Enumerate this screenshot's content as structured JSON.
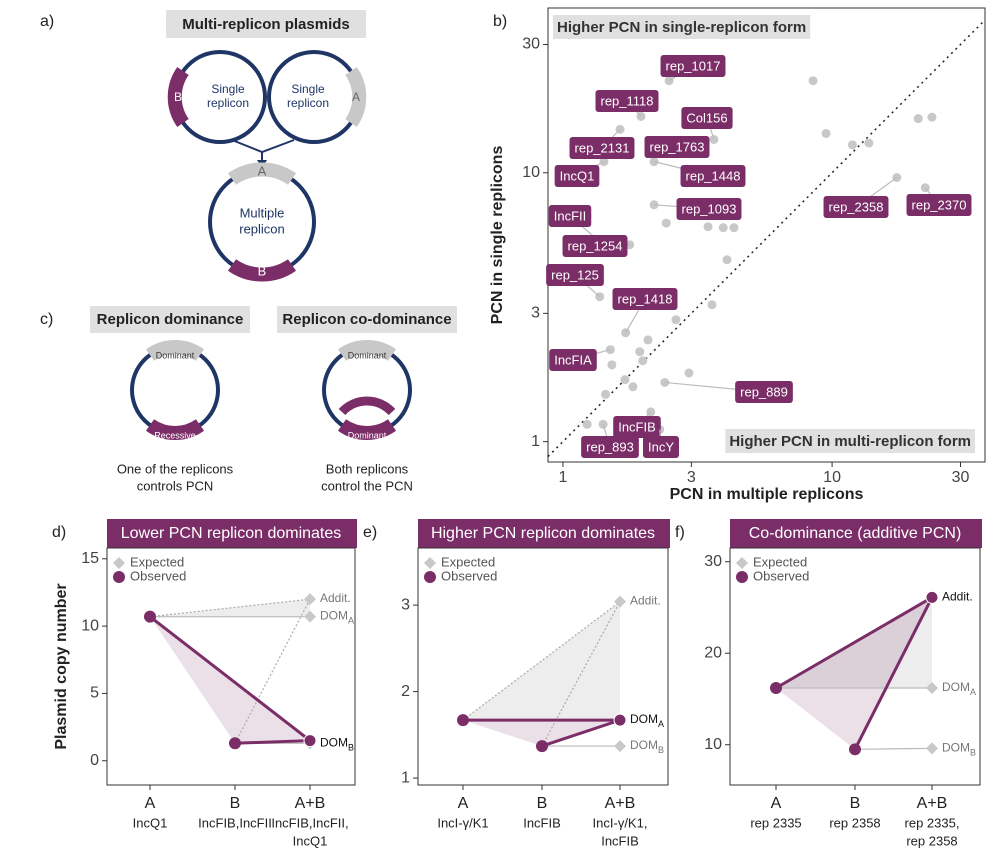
{
  "panel_a": {
    "label": "a)",
    "title": "Multi-replicon plasmids",
    "left": {
      "text": [
        "Single",
        "replicon"
      ],
      "replicon": "B"
    },
    "right": {
      "text": [
        "Single",
        "replicon"
      ],
      "replicon": "A"
    },
    "combined": {
      "text": [
        "Multiple",
        "replicon"
      ],
      "top": "A",
      "bottom": "B"
    }
  },
  "panel_c": {
    "label": "c)",
    "dominance": {
      "title": "Replicon dominance",
      "top": "Dominant",
      "bottom": "Recessive",
      "caption": [
        "One of the replicons",
        "controls PCN"
      ]
    },
    "codominance": {
      "title": "Replicon co-dominance",
      "top": "Dominant",
      "bottom": "Dominant",
      "caption": [
        "Both replicons",
        "control the PCN"
      ]
    }
  },
  "chart_data": [
    {
      "type": "scatter",
      "panel": "b)",
      "x_label": "PCN in multiple replicons",
      "y_label": "PCN in single replicons",
      "log_x": true,
      "log_y": true,
      "diagonal": true,
      "xlim": [
        0.88,
        37
      ],
      "ylim": [
        0.84,
        41
      ],
      "xticks": [
        1,
        3,
        10,
        30
      ],
      "yticks": [
        1,
        3,
        10,
        30
      ],
      "annotations": [
        "Higher PCN in single-replicon form",
        "Higher PCN in multi-replicon form"
      ],
      "color": "#c8c8c8",
      "label_color": "#7b2d68",
      "x": [
        2.48,
        1.95,
        3.64,
        1.63,
        2.2,
        1.42,
        2.18,
        2.18,
        17.4,
        22.2,
        1.43,
        1.77,
        1.37,
        1.71,
        1.5,
        2.39,
        2.12,
        1.41,
        2.29,
        8.5,
        9.5,
        11.9,
        13.7,
        20.9,
        23.5,
        3.94,
        3.46,
        4.32,
        4.07,
        3.58,
        2.63,
        2.42,
        2.82,
        1.52,
        1.7,
        1.93,
        1.98,
        2.07,
        1.6,
        1.44,
        1.23,
        1.82,
        2.94
      ],
      "y": [
        22.0,
        16.2,
        13.3,
        14.5,
        13.2,
        11.0,
        11.0,
        7.6,
        9.6,
        8.8,
        5.35,
        5.4,
        3.46,
        2.54,
        2.2,
        1.66,
        1.29,
        1.16,
        1.11,
        22.0,
        14.0,
        12.7,
        12.9,
        15.9,
        16.1,
        6.25,
        6.3,
        6.25,
        4.75,
        3.23,
        2.84,
        6.5,
        7.5,
        1.93,
        1.7,
        2.16,
        2.0,
        2.39,
        1.2,
        1.5,
        1.16,
        1.6,
        1.8
      ],
      "labels": [
        "rep_1017",
        "rep_1118",
        "Col156",
        "rep_2131",
        "rep_1763",
        "IncQ1",
        "rep_1448",
        "rep_1093",
        "rep_2358",
        "rep_2370",
        "IncFII",
        "rep_1254",
        "rep_125",
        "rep_1418",
        "IncFIA",
        "rep_889",
        "IncFIB",
        "rep_893",
        "IncY",
        null,
        null,
        null,
        null,
        null,
        null,
        null,
        null,
        null,
        null,
        null,
        null,
        null,
        null,
        null,
        null,
        null,
        null,
        null,
        null,
        null,
        null,
        null,
        null
      ]
    },
    {
      "type": "line",
      "panel": "d)",
      "title": "Lower PCN replicon dominates",
      "y_label": "Plasmid copy number",
      "categories": [
        "A",
        "B",
        "A+B"
      ],
      "category_details": [
        [
          "IncQ1"
        ],
        [
          "IncFIB,IncFII"
        ],
        [
          "IncFIB,IncFII,",
          "IncQ1"
        ]
      ],
      "ylim": [
        -1.8,
        15.8
      ],
      "yticks": [
        0,
        5,
        10,
        15
      ],
      "expected": {
        "name": "Expected",
        "color": "#c8c8c8",
        "values": [
          12.0,
          10.7,
          1.3
        ],
        "labels": [
          "Addit.",
          "DOM",
          "DOM"
        ],
        "subscripts": [
          null,
          "A",
          "B"
        ]
      },
      "observed": {
        "name": "Observed",
        "color": "#7b2d68",
        "values": [
          10.7,
          1.3,
          1.5
        ]
      }
    },
    {
      "type": "line",
      "panel": "e)",
      "title": "Higher PCN replicon dominates",
      "categories": [
        "A",
        "B",
        "A+B"
      ],
      "category_details": [
        [
          "IncI-γ/K1"
        ],
        [
          "IncFIB"
        ],
        [
          "IncI-γ/K1,",
          "IncFIB"
        ]
      ],
      "ylim": [
        0.92,
        3.66
      ],
      "yticks": [
        1,
        2,
        3
      ],
      "expected": {
        "name": "Expected",
        "color": "#c8c8c8",
        "values": [
          3.04,
          1.67,
          1.37
        ],
        "labels": [
          "Addit.",
          "DOM",
          "DOM"
        ],
        "subscripts": [
          null,
          "A",
          "B"
        ]
      },
      "observed": {
        "name": "Observed",
        "color": "#7b2d68",
        "values": [
          1.67,
          1.37,
          1.67
        ]
      }
    },
    {
      "type": "line",
      "panel": "f)",
      "title": "Co-dominance (additive PCN)",
      "categories": [
        "A",
        "B",
        "A+B"
      ],
      "category_details": [
        [
          "rep 2335"
        ],
        [
          "rep 2358"
        ],
        [
          "rep 2335,",
          "rep 2358"
        ]
      ],
      "ylim": [
        5.6,
        31.5
      ],
      "yticks": [
        10,
        20,
        30
      ],
      "expected": {
        "name": "Expected",
        "color": "#c8c8c8",
        "values": [
          26.1,
          16.2,
          9.6
        ],
        "labels": [
          "Addit.",
          "DOM",
          "DOM"
        ],
        "subscripts": [
          null,
          "A",
          "B"
        ]
      },
      "observed": {
        "name": "Observed",
        "color": "#7b2d68",
        "values": [
          16.2,
          9.5,
          26.1
        ]
      }
    }
  ]
}
